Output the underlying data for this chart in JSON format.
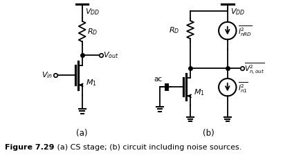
{
  "fig_width": 4.22,
  "fig_height": 2.26,
  "dpi": 100,
  "bg_color": "#ffffff",
  "line_color": "#000000",
  "lw": 1.3,
  "caption_bold": "Figure 7.29",
  "caption_normal": "   (a) CS stage; (b) circuit including noise sources.",
  "label_a": "(a)",
  "label_b": "(b)"
}
